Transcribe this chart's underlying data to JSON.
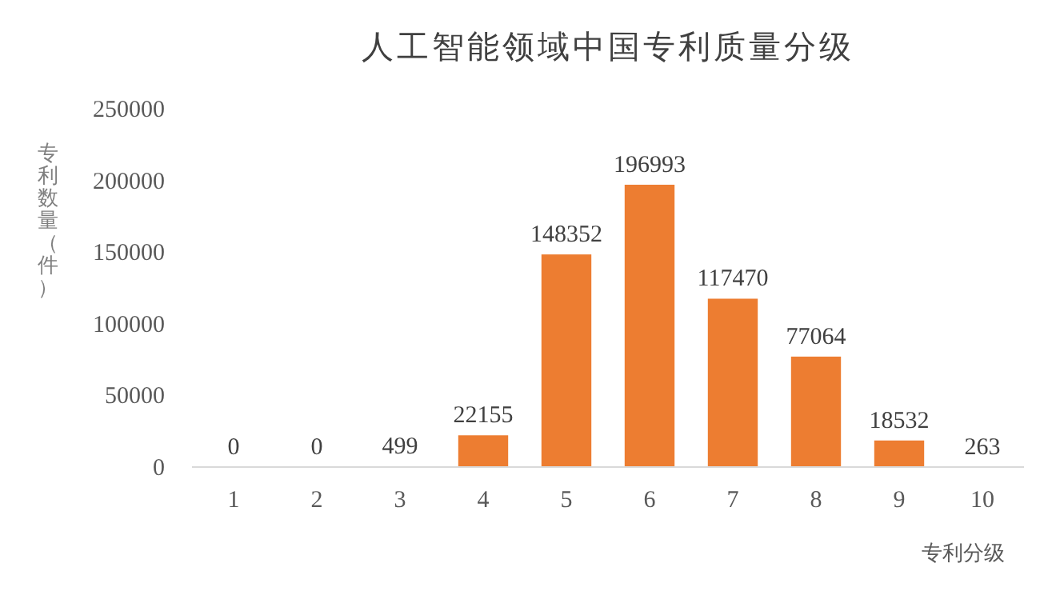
{
  "chart_data": {
    "type": "bar",
    "title": "人工智能领域中国专利质量分级",
    "xlabel": "专利分级",
    "ylabel": "专利数量（件）",
    "categories": [
      "1",
      "2",
      "3",
      "4",
      "5",
      "6",
      "7",
      "8",
      "9",
      "10"
    ],
    "values": [
      0,
      0,
      499,
      22155,
      148352,
      196993,
      117470,
      77064,
      18532,
      263
    ],
    "color": "#ed7d31",
    "ylim": [
      0,
      250000
    ],
    "yticks": [
      0,
      50000,
      100000,
      150000,
      200000,
      250000
    ],
    "data_labels": true
  }
}
